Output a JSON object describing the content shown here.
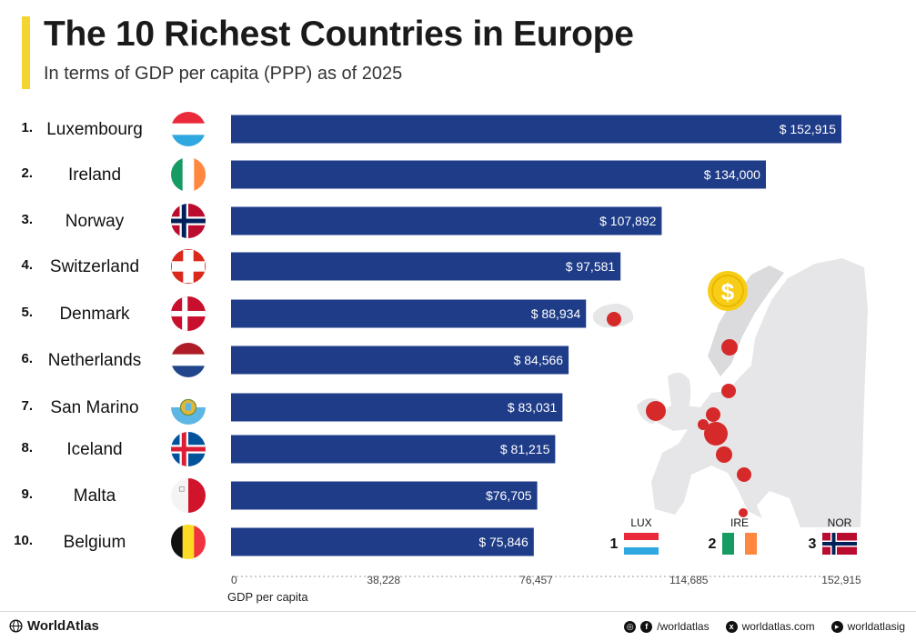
{
  "header": {
    "title": "The 10 Richest Countries in Europe",
    "subtitle": "In terms of GDP per capita (PPP) as of 2025"
  },
  "colors": {
    "accent": "#f4d431",
    "bar": "#1f3c88",
    "dot": "#d62a2a",
    "map": "#e6e6e8",
    "coin": "#f7cd18"
  },
  "chart_data": {
    "type": "bar",
    "orientation": "horizontal",
    "title": "The 10 Richest Countries in Europe",
    "subtitle": "In terms of GDP per capita (PPP) as of 2025",
    "xlabel": "GDP per capita",
    "ylabel": "",
    "xlim": [
      0,
      152915
    ],
    "grid": false,
    "categories": [
      {
        "rank": "1.",
        "name": "Luxembourg",
        "label": "$ 152,915",
        "flag": "luxembourg-flag"
      },
      {
        "rank": "2.",
        "name": "Ireland",
        "label": "$ 134,000",
        "flag": "ireland-flag"
      },
      {
        "rank": "3.",
        "name": "Norway",
        "label": "$ 107,892",
        "flag": "norway-flag"
      },
      {
        "rank": "4.",
        "name": "Switzerland",
        "label": "$ 97,581",
        "flag": "switzerland-flag"
      },
      {
        "rank": "5.",
        "name": "Denmark",
        "label": "$ 88,934",
        "flag": "denmark-flag"
      },
      {
        "rank": "6.",
        "name": "Netherlands",
        "label": "$ 84,566",
        "flag": "netherlands-flag"
      },
      {
        "rank": "7.",
        "name": "San Marino",
        "label": "$ 83,031",
        "flag": "san-marino-flag"
      },
      {
        "rank": "8.",
        "name": "Iceland",
        "label": "$ 81,215",
        "flag": "iceland-flag"
      },
      {
        "rank": "9.",
        "name": "Malta",
        "label": "$76,705",
        "flag": "malta-flag"
      },
      {
        "rank": "10.",
        "name": "Belgium",
        "label": "$ 75,846",
        "flag": "belgium-flag"
      }
    ],
    "values": [
      152915,
      134000,
      107892,
      97581,
      88934,
      84566,
      83031,
      81215,
      76705,
      75846
    ],
    "ticks": [
      {
        "value": 0,
        "label": "0"
      },
      {
        "value": 38228,
        "label": "38,228"
      },
      {
        "value": 76457,
        "label": "76,457"
      },
      {
        "value": 114685,
        "label": "114,685"
      },
      {
        "value": 152915,
        "label": "152,915"
      }
    ],
    "annotations": {
      "top3": [
        {
          "rank": "1",
          "code": "LUX",
          "flag": "luxembourg-flag"
        },
        {
          "rank": "2",
          "code": "IRE",
          "flag": "ireland-flag"
        },
        {
          "rank": "3",
          "code": "NOR",
          "flag": "norway-flag"
        }
      ],
      "map_markers": [
        "Iceland",
        "Norway",
        "Denmark",
        "Ireland",
        "Netherlands",
        "Belgium",
        "Luxembourg",
        "Switzerland",
        "San Marino",
        "Malta"
      ],
      "coin_symbol": "$"
    }
  },
  "footer": {
    "brand": "WorldAtlas",
    "social1": "/worldatlas",
    "social2": "worldatlas.com",
    "social3": "worldatlasig"
  }
}
